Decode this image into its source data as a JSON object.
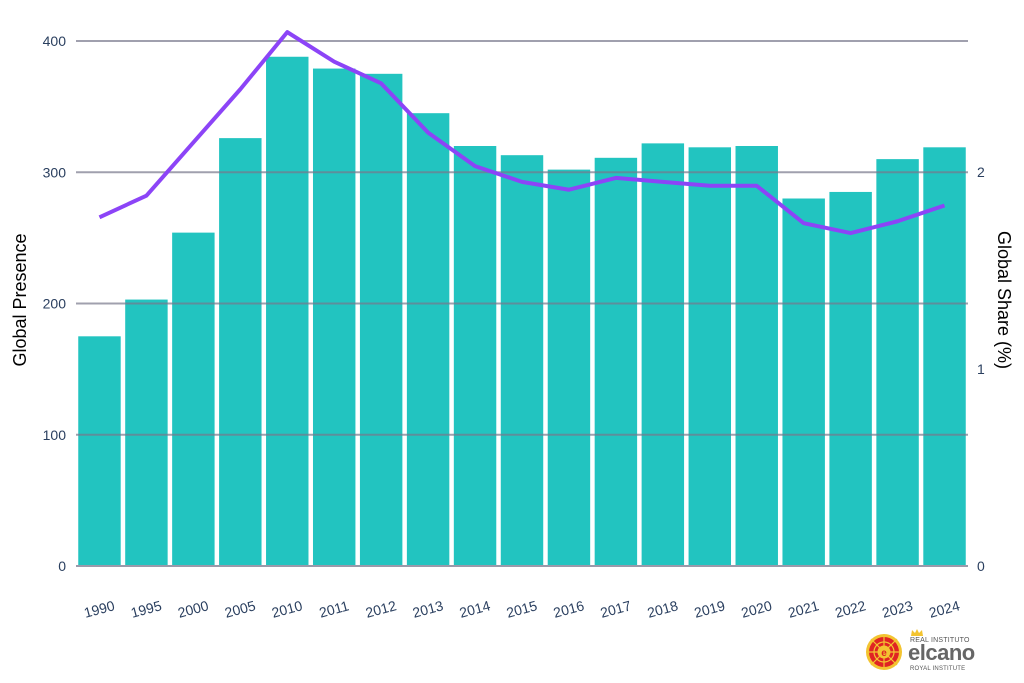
{
  "chart_data": {
    "type": "bar+line",
    "title": "",
    "xlabel": "",
    "ylabel": "Global Presence",
    "y2label": "Global Share (%)",
    "ylim": [
      0,
      400
    ],
    "y2lim": [
      0,
      2.66
    ],
    "yticks": [
      0,
      100,
      200,
      300,
      400
    ],
    "y2ticks": [
      0,
      1,
      2
    ],
    "grid": true,
    "legend": "none",
    "categories": [
      "1990",
      "1995",
      "2000",
      "2005",
      "2010",
      "2011",
      "2012",
      "2013",
      "2014",
      "2015",
      "2016",
      "2017",
      "2018",
      "2019",
      "2020",
      "2021",
      "2022",
      "2023",
      "2024"
    ],
    "series": [
      {
        "name": "Global Presence",
        "type": "bar",
        "axis": "left",
        "color": "#22c4c0",
        "values": [
          175,
          203,
          254,
          326,
          388,
          379,
          375,
          345,
          320,
          313,
          302,
          311,
          322,
          319,
          320,
          280,
          285,
          310,
          319
        ]
      },
      {
        "name": "Global Share (%)",
        "type": "line",
        "axis": "right",
        "color": "#8c44f7",
        "values": [
          1.77,
          1.88,
          2.15,
          2.42,
          2.71,
          2.56,
          2.45,
          2.2,
          2.03,
          1.95,
          1.91,
          1.97,
          1.95,
          1.93,
          1.93,
          1.74,
          1.69,
          1.75,
          1.83
        ]
      }
    ]
  },
  "logo": {
    "line1": "REAL INSTITUTO",
    "name": "elcano",
    "line2": "ROYAL INSTITUTE"
  }
}
